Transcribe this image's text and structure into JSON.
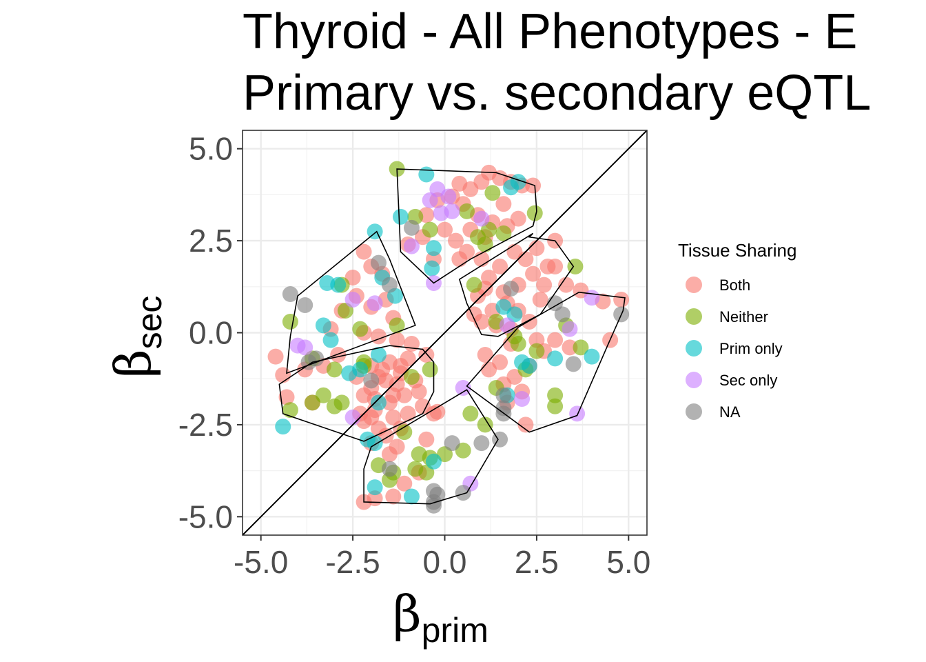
{
  "chart_data": {
    "type": "scatter",
    "title_lines": [
      "Thyroid - All Phenotypes - E",
      "Primary vs. secondary eQTL"
    ],
    "xlabel": {
      "symbol": "β",
      "subscript": "prim"
    },
    "ylabel": {
      "symbol": "β",
      "subscript": "sec"
    },
    "xlim": [
      -5.5,
      5.5
    ],
    "ylim": [
      -5.5,
      5.5
    ],
    "x_ticks": [
      -5.0,
      -2.5,
      0.0,
      2.5,
      5.0
    ],
    "y_ticks": [
      5.0,
      2.5,
      0.0,
      -2.5,
      -5.0
    ],
    "x_tick_labels": [
      "-5.0",
      "-2.5",
      "0.0",
      "2.5",
      "5.0"
    ],
    "y_tick_labels": [
      "5.0",
      "2.5",
      "0.0",
      "-2.5",
      "-5.0"
    ],
    "grid": true,
    "reference_line": "y = x",
    "legend": {
      "title": "Tissue Sharing",
      "placement": "right",
      "entries": [
        {
          "label": "Both",
          "color": "#F8766D"
        },
        {
          "label": "Neither",
          "color": "#7CAE00"
        },
        {
          "label": "Prim only",
          "color": "#00BFC4"
        },
        {
          "label": "Sec only",
          "color": "#C77CFF"
        },
        {
          "label": "NA",
          "color": "#7F7F7F"
        }
      ]
    },
    "hulls": [
      [
        [
          -1.3,
          4.45
        ],
        [
          1.4,
          4.35
        ],
        [
          2.45,
          4.0
        ],
        [
          2.5,
          3.3
        ],
        [
          2.4,
          2.9
        ],
        [
          0.7,
          2.0
        ],
        [
          -0.3,
          1.35
        ],
        [
          -1.2,
          2.2
        ]
      ],
      [
        [
          2.3,
          2.6
        ],
        [
          3.0,
          2.5
        ],
        [
          3.5,
          1.8
        ],
        [
          2.6,
          0.5
        ],
        [
          1.45,
          -0.1
        ],
        [
          1.0,
          -0.05
        ],
        [
          0.6,
          0.8
        ],
        [
          0.4,
          1.45
        ],
        [
          2.4,
          2.7
        ]
      ],
      [
        [
          -1.85,
          2.75
        ],
        [
          -1.5,
          2.0
        ],
        [
          -0.8,
          0.2
        ],
        [
          -4.3,
          -1.1
        ],
        [
          -4.2,
          -0.1
        ],
        [
          -4.0,
          1.0
        ]
      ],
      [
        [
          -1.5,
          -0.35
        ],
        [
          -0.6,
          -0.45
        ],
        [
          -0.3,
          -0.8
        ],
        [
          -0.3,
          -1.6
        ],
        [
          -0.6,
          -2.2
        ],
        [
          -2.2,
          -2.95
        ],
        [
          -4.4,
          -2.2
        ],
        [
          -4.5,
          -1.4
        ],
        [
          -3.6,
          -0.8
        ]
      ],
      [
        [
          3.65,
          1.1
        ],
        [
          4.9,
          0.95
        ],
        [
          4.85,
          0.6
        ],
        [
          4.45,
          -0.3
        ],
        [
          3.6,
          -2.25
        ],
        [
          2.3,
          -2.7
        ],
        [
          0.6,
          -1.45
        ],
        [
          2.0,
          0.15
        ]
      ],
      [
        [
          0.6,
          -1.55
        ],
        [
          1.45,
          -2.9
        ],
        [
          0.6,
          -4.35
        ],
        [
          -0.4,
          -4.65
        ],
        [
          -2.2,
          -4.6
        ],
        [
          -2.2,
          -3.7
        ],
        [
          -2.0,
          -3.1
        ]
      ]
    ],
    "series": [
      {
        "name": "Both",
        "color": "#F8766D",
        "points": [
          [
            1.2,
            4.35
          ],
          [
            1.5,
            4.2
          ],
          [
            1.8,
            4.1
          ],
          [
            2.1,
            4.0
          ],
          [
            2.4,
            4.0
          ],
          [
            0.4,
            4.05
          ],
          [
            0.7,
            3.9
          ],
          [
            1.0,
            4.1
          ],
          [
            0.2,
            3.7
          ],
          [
            0.5,
            3.5
          ],
          [
            0.9,
            3.2
          ],
          [
            1.3,
            3.0
          ],
          [
            1.7,
            2.9
          ],
          [
            2.0,
            3.1
          ],
          [
            1.6,
            3.5
          ],
          [
            -0.2,
            3.6
          ],
          [
            -0.5,
            3.2
          ],
          [
            0.0,
            2.8
          ],
          [
            0.3,
            2.5
          ],
          [
            0.6,
            2.2
          ],
          [
            1.0,
            2.0
          ],
          [
            1.5,
            1.8
          ],
          [
            1.9,
            2.2
          ],
          [
            2.2,
            2.0
          ],
          [
            2.4,
            1.6
          ],
          [
            2.7,
            1.3
          ],
          [
            3.0,
            1.8
          ],
          [
            3.3,
            1.3
          ],
          [
            2.0,
            1.3
          ],
          [
            1.7,
            0.8
          ],
          [
            1.3,
            0.6
          ],
          [
            1.0,
            0.3
          ],
          [
            0.9,
            1.0
          ],
          [
            1.2,
            1.5
          ],
          [
            1.6,
            1.1
          ],
          [
            2.0,
            0.6
          ],
          [
            2.3,
            0.3
          ],
          [
            2.6,
            0.9
          ],
          [
            3.0,
            2.5
          ],
          [
            2.5,
            2.3
          ],
          [
            1.1,
            2.6
          ],
          [
            0.7,
            2.8
          ],
          [
            0.4,
            2.0
          ],
          [
            -0.3,
            2.0
          ],
          [
            -0.6,
            2.6
          ],
          [
            -1.0,
            2.4
          ],
          [
            1.4,
            0.2
          ],
          [
            1.8,
            0.1
          ],
          [
            1.1,
            1.2
          ],
          [
            0.8,
            0.5
          ],
          [
            -2.2,
            2.2
          ],
          [
            -2.0,
            1.8
          ],
          [
            -1.7,
            1.6
          ],
          [
            -2.5,
            1.5
          ],
          [
            -2.4,
            1.0
          ],
          [
            -2.0,
            0.7
          ],
          [
            -1.6,
            0.9
          ],
          [
            -1.4,
            0.4
          ],
          [
            -2.8,
            0.6
          ],
          [
            -3.1,
            0.1
          ],
          [
            -2.2,
            0.0
          ],
          [
            -1.8,
            -0.1
          ],
          [
            -1.3,
            -0.2
          ],
          [
            -0.9,
            -0.3
          ],
          [
            -0.5,
            -0.6
          ],
          [
            -1.0,
            -0.7
          ],
          [
            -1.5,
            -0.8
          ],
          [
            -2.0,
            -0.9
          ],
          [
            -2.4,
            -1.2
          ],
          [
            -2.0,
            -1.5
          ],
          [
            -1.6,
            -1.3
          ],
          [
            -1.2,
            -1.1
          ],
          [
            -0.8,
            -1.3
          ],
          [
            -1.1,
            -1.7
          ],
          [
            -1.5,
            -1.9
          ],
          [
            -1.9,
            -2.1
          ],
          [
            -2.2,
            -2.4
          ],
          [
            -1.8,
            -2.6
          ],
          [
            -1.4,
            -2.3
          ],
          [
            -1.0,
            -2.2
          ],
          [
            -0.6,
            -2.0
          ],
          [
            -0.3,
            -2.2
          ],
          [
            -0.7,
            -1.6
          ],
          [
            -1.3,
            -1.4
          ],
          [
            -1.7,
            -1.0
          ],
          [
            -2.2,
            -1.7
          ],
          [
            -2.0,
            -2.3
          ],
          [
            -1.6,
            -2.8
          ],
          [
            -1.2,
            -2.6
          ],
          [
            -1.9,
            -1.8
          ],
          [
            -4.6,
            -0.65
          ],
          [
            -4.4,
            -1.15
          ],
          [
            -4.3,
            -1.75
          ],
          [
            -3.6,
            -1.9
          ],
          [
            -3.8,
            -1.0
          ],
          [
            -3.3,
            -0.9
          ],
          [
            -2.9,
            -0.6
          ],
          [
            -1.2,
            -0.9
          ],
          [
            -1.4,
            -1.7
          ],
          [
            -1.8,
            -1.2
          ],
          [
            -2.3,
            -2.2
          ],
          [
            -2.0,
            -3.0
          ],
          [
            -1.5,
            -3.3
          ],
          [
            -1.1,
            -4.1
          ],
          [
            -0.7,
            -3.8
          ],
          [
            -2.2,
            -4.6
          ],
          [
            -1.9,
            -4.5
          ],
          [
            -1.4,
            -4.45
          ],
          [
            -1.3,
            -3.1
          ],
          [
            -0.2,
            -2.15
          ],
          [
            -0.5,
            -2.9
          ],
          [
            1.1,
            -0.6
          ],
          [
            1.5,
            -0.8
          ],
          [
            1.9,
            -1.2
          ],
          [
            2.3,
            -0.9
          ],
          [
            2.7,
            -0.5
          ],
          [
            3.0,
            -0.2
          ],
          [
            3.4,
            -0.4
          ],
          [
            1.8,
            -0.3
          ],
          [
            2.1,
            -1.6
          ],
          [
            1.7,
            -1.9
          ],
          [
            2.2,
            -2.5
          ],
          [
            3.7,
            1.15
          ],
          [
            4.3,
            0.85
          ],
          [
            4.8,
            0.9
          ],
          [
            4.5,
            -0.2
          ],
          [
            2.8,
            1.8
          ],
          [
            1.6,
            -1.4
          ],
          [
            2.5,
            -0.2
          ],
          [
            1.2,
            -1.0
          ]
        ]
      },
      {
        "name": "Neither",
        "color": "#7CAE00",
        "points": [
          [
            -1.3,
            4.45
          ],
          [
            -0.8,
            3.15
          ],
          [
            1.3,
            3.8
          ],
          [
            2.45,
            3.25
          ],
          [
            1.6,
            2.7
          ],
          [
            0.9,
            2.6
          ],
          [
            -0.4,
            2.8
          ],
          [
            3.55,
            1.8
          ],
          [
            0.8,
            1.3
          ],
          [
            1.2,
            2.8
          ],
          [
            1.4,
            0.3
          ],
          [
            -4.2,
            0.3
          ],
          [
            -2.8,
            1.3
          ],
          [
            -2.7,
            0.6
          ],
          [
            -2.3,
            0.1
          ],
          [
            -3.6,
            -0.7
          ],
          [
            -3.0,
            -1.0
          ],
          [
            -3.3,
            -1.7
          ],
          [
            -3.6,
            -1.9
          ],
          [
            -4.2,
            -2.1
          ],
          [
            -3.0,
            -2.0
          ],
          [
            -2.8,
            -1.9
          ],
          [
            -2.2,
            -0.8
          ],
          [
            -1.3,
            0.2
          ],
          [
            -0.9,
            -1.2
          ],
          [
            -0.4,
            -1.0
          ],
          [
            -1.1,
            -2.7
          ],
          [
            -0.7,
            -3.3
          ],
          [
            -1.4,
            -3.8
          ],
          [
            -1.8,
            -3.6
          ],
          [
            -0.8,
            -3.7
          ],
          [
            -0.4,
            -3.4
          ],
          [
            0.0,
            -3.3
          ],
          [
            0.5,
            -3.2
          ],
          [
            -0.5,
            -3.8
          ],
          [
            0.7,
            -2.2
          ],
          [
            1.1,
            -2.5
          ],
          [
            1.4,
            -1.5
          ],
          [
            2.0,
            -0.3
          ],
          [
            2.5,
            -0.5
          ],
          [
            3.0,
            -2.0
          ],
          [
            3.0,
            -1.7
          ],
          [
            3.7,
            -0.4
          ],
          [
            3.3,
            0.2
          ],
          [
            2.2,
            -1.0
          ],
          [
            1.9,
            -0.1
          ],
          [
            -1.5,
            -4.0
          ],
          [
            -2.2,
            -0.9
          ],
          [
            0.6,
            3.3
          ],
          [
            1.1,
            2.4
          ]
        ]
      },
      {
        "name": "Prim only",
        "color": "#00BFC4",
        "points": [
          [
            -0.5,
            4.3
          ],
          [
            -1.2,
            3.15
          ],
          [
            -1.9,
            2.75
          ],
          [
            1.8,
            3.95
          ],
          [
            2.0,
            4.1
          ],
          [
            -0.3,
            2.3
          ],
          [
            -0.35,
            1.75
          ],
          [
            -1.7,
            1.5
          ],
          [
            -3.2,
            1.35
          ],
          [
            -2.9,
            1.3
          ],
          [
            -1.35,
            1.0
          ],
          [
            -3.3,
            0.2
          ],
          [
            -3.1,
            -0.2
          ],
          [
            -2.6,
            -1.1
          ],
          [
            -2.3,
            -1.0
          ],
          [
            -1.8,
            -0.6
          ],
          [
            -4.4,
            -2.55
          ],
          [
            -1.8,
            -1.9
          ],
          [
            -2.1,
            -2.9
          ],
          [
            -1.9,
            -3.0
          ],
          [
            -0.3,
            -3.5
          ],
          [
            -1.9,
            -4.2
          ],
          [
            -0.9,
            -4.45
          ],
          [
            1.6,
            0.7
          ],
          [
            1.9,
            0.5
          ],
          [
            2.1,
            -0.8
          ],
          [
            2.3,
            -0.9
          ],
          [
            3.0,
            -0.7
          ],
          [
            4.0,
            -0.65
          ],
          [
            1.7,
            -1.7
          ]
        ]
      },
      {
        "name": "Sec only",
        "color": "#C77CFF",
        "points": [
          [
            -0.2,
            3.9
          ],
          [
            0.1,
            3.7
          ],
          [
            0.2,
            3.3
          ],
          [
            -0.1,
            3.25
          ],
          [
            1.0,
            3.1
          ],
          [
            -0.9,
            2.35
          ],
          [
            -0.3,
            1.35
          ],
          [
            -2.5,
            0.9
          ],
          [
            -1.9,
            0.8
          ],
          [
            -4.0,
            -0.35
          ],
          [
            -3.8,
            -0.4
          ],
          [
            -2.5,
            -2.3
          ],
          [
            0.5,
            -1.5
          ],
          [
            2.1,
            -1.8
          ],
          [
            3.6,
            -2.2
          ],
          [
            0.7,
            -4.1
          ],
          [
            4.0,
            0.95
          ],
          [
            3.4,
            0.1
          ],
          [
            1.7,
            0.2
          ],
          [
            -0.4,
            3.6
          ]
        ]
      },
      {
        "name": "NA",
        "color": "#7F7F7F",
        "points": [
          [
            -0.9,
            2.85
          ],
          [
            -4.2,
            1.05
          ],
          [
            -3.8,
            0.75
          ],
          [
            -1.5,
            1.3
          ],
          [
            -1.8,
            1.9
          ],
          [
            -3.5,
            -0.7
          ],
          [
            -3.7,
            -0.8
          ],
          [
            -2.0,
            -1.3
          ],
          [
            0.2,
            -3.0
          ],
          [
            1.0,
            -3.0
          ],
          [
            1.5,
            -2.9
          ],
          [
            -0.3,
            -4.3
          ],
          [
            -0.3,
            -4.6
          ],
          [
            -0.3,
            -4.7
          ],
          [
            -0.2,
            -4.4
          ],
          [
            0.5,
            -4.35
          ],
          [
            1.6,
            -1.7
          ],
          [
            1.6,
            -2.05
          ],
          [
            1.6,
            -2.2
          ],
          [
            3.0,
            0.8
          ],
          [
            3.2,
            0.5
          ],
          [
            3.5,
            -0.85
          ],
          [
            4.8,
            0.5
          ],
          [
            -1.5,
            -3.7
          ],
          [
            1.8,
            1.2
          ]
        ]
      }
    ]
  }
}
